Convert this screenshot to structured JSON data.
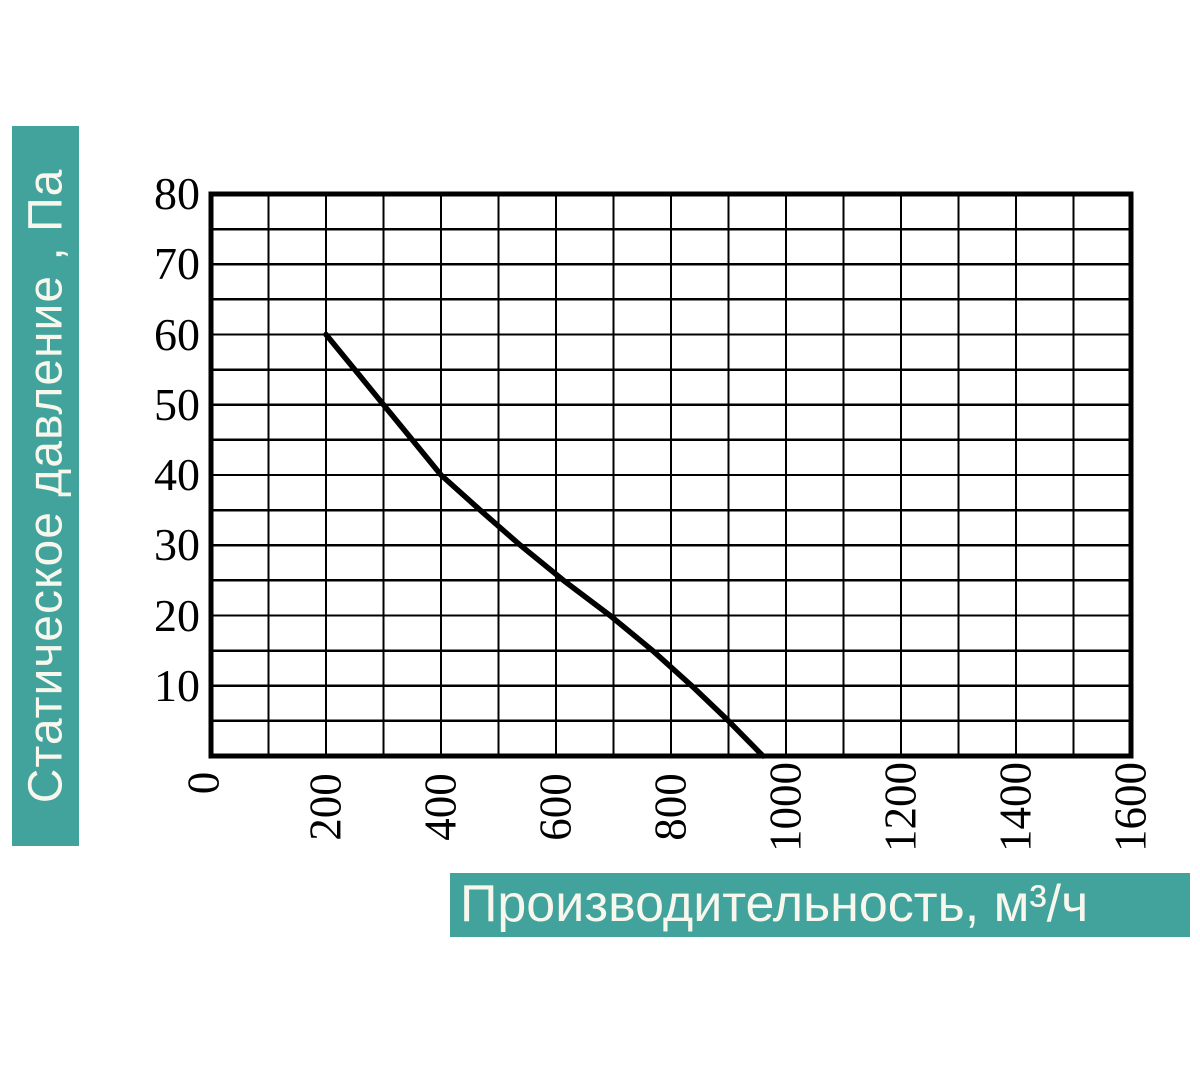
{
  "colors": {
    "banner_bg": "#41a39c",
    "banner_text": "#f7f7ee",
    "grid": "#000000",
    "border": "#000000",
    "curve": "#000000",
    "tick_text": "#000000",
    "background": "#ffffff"
  },
  "chart_data": {
    "type": "line",
    "title": "",
    "xlabel": "Производительность, м³/ч",
    "ylabel": "Статическое давление , Па",
    "xlim": [
      0,
      1600
    ],
    "ylim": [
      0,
      80
    ],
    "x_grid_step": 100,
    "y_grid_step": 5,
    "grid": true,
    "legend": false,
    "origin_tick_label": "0",
    "x_tick_labels": [
      200,
      400,
      600,
      800,
      1000,
      1200,
      1400,
      1600
    ],
    "y_tick_labels": [
      10,
      20,
      30,
      40,
      50,
      60,
      70,
      80
    ],
    "series": [
      {
        "name": "fan-performance-curve",
        "color": "#000000",
        "points": [
          [
            200,
            60
          ],
          [
            250,
            55
          ],
          [
            300,
            50
          ],
          [
            350,
            45
          ],
          [
            400,
            40
          ],
          [
            468,
            35
          ],
          [
            538,
            30
          ],
          [
            613,
            25
          ],
          [
            694,
            20
          ],
          [
            768,
            15
          ],
          [
            836,
            10
          ],
          [
            900,
            5
          ],
          [
            960,
            0
          ]
        ]
      }
    ]
  }
}
